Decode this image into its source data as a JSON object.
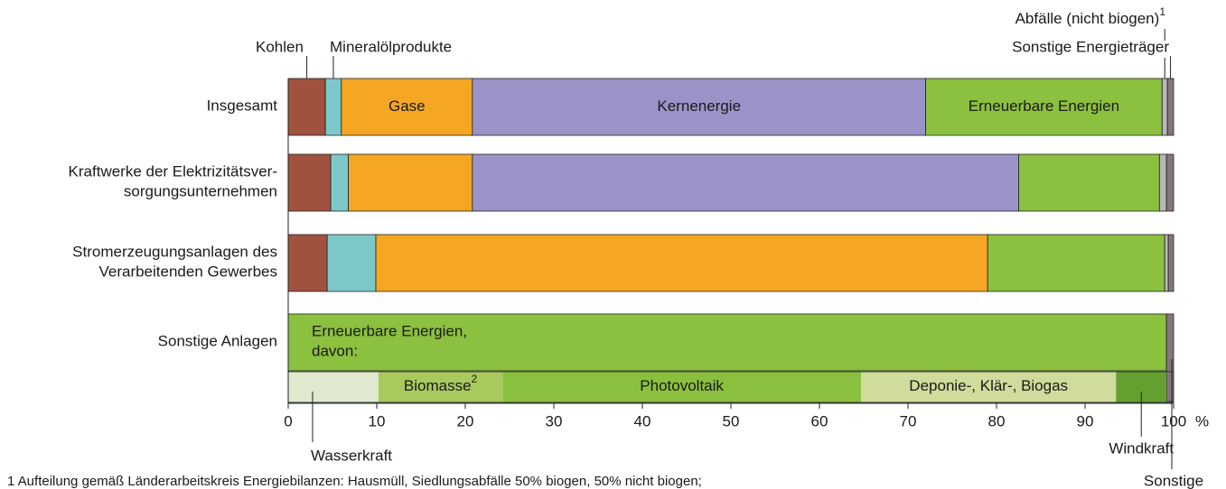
{
  "chart_data": {
    "type": "stacked-bar-horizontal",
    "categories": [
      "Insgesamt",
      "Kraftwerke der Elektrizitätsver-\nsorgungsunternehmen",
      "Stromerzeugungsanlagen des\nVerarbeitenden Gewerbes",
      "Sonstige Anlagen"
    ],
    "series": [
      {
        "name": "Kohlen",
        "color": "#a0523f",
        "values": [
          4.2,
          4.8,
          4.4,
          0
        ]
      },
      {
        "name": "Mineralölprodukte",
        "color": "#7cc8c8",
        "values": [
          1.8,
          2.0,
          5.5,
          0
        ]
      },
      {
        "name": "Gase",
        "color": "#f5a623",
        "values": [
          14.8,
          14.0,
          69.1,
          0
        ]
      },
      {
        "name": "Kernenergie",
        "color": "#9b93c8",
        "values": [
          51.2,
          61.7,
          0,
          0
        ]
      },
      {
        "name": "Erneuerbare Energien",
        "color": "#8cc03f",
        "values": [
          26.7,
          15.9,
          20.0,
          99.2
        ]
      },
      {
        "name": "Abfälle (nicht biogen)",
        "footnote_marker": "1",
        "color": "#b8b8b8",
        "values": [
          0.6,
          0.8,
          0.4,
          0
        ]
      },
      {
        "name": "Sonstige Energieträger",
        "color": "#85767c",
        "values": [
          0.7,
          0.8,
          0.6,
          0.8
        ]
      }
    ],
    "breakdown": {
      "title": "Erneuerbare Energien,\ndavon:",
      "segments": [
        {
          "name": "Wasserkraft",
          "color": "#dfe9d0",
          "value": 10.2
        },
        {
          "name": "Biomasse",
          "footnote_marker": "2",
          "color": "#a8c95e",
          "value": 14.0
        },
        {
          "name": "Photovoltaik",
          "color": "#8bc03f",
          "value": 40.5
        },
        {
          "name": "Deponie-, Klär-, Biogas",
          "color": "#cfdc9b",
          "value": 28.8
        },
        {
          "name": "Windkraft",
          "color": "#64a030",
          "value": 5.7
        }
      ],
      "other_label": "Sonstige"
    },
    "xlim": [
      0,
      100
    ],
    "xticks": [
      0,
      10,
      20,
      30,
      40,
      50,
      60,
      70,
      80,
      90,
      100
    ],
    "x_unit": "%",
    "footnote": "1  Aufteilung gemäß Länderarbeitskreis Energiebilanzen: Hausmüll, Siedlungsabfälle 50% biogen, 50% nicht biogen;"
  }
}
